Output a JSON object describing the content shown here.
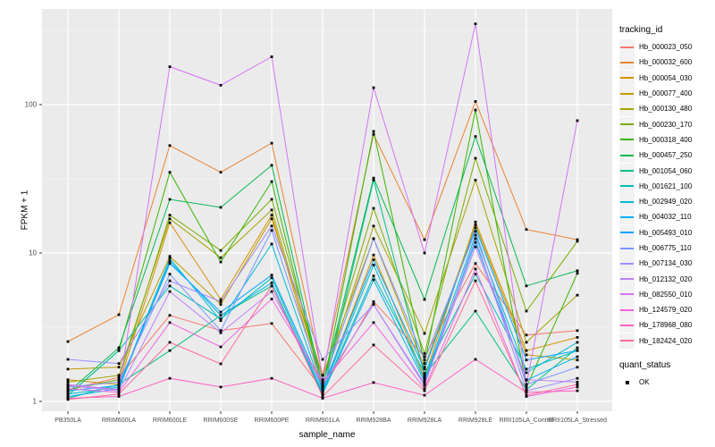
{
  "chart_data": {
    "type": "line",
    "title": "",
    "xlabel": "sample_name",
    "ylabel": "FPKM + 1",
    "y_scale": "log10",
    "y_ticks": [
      1,
      10,
      100
    ],
    "y_minor_ticks": [
      3.162,
      31.62,
      316.2
    ],
    "ylim": [
      0.86,
      440
    ],
    "grid": "on",
    "legend_position": "right",
    "categories": [
      "PB350LA",
      "RRIM600LA",
      "RRIM600LE",
      "RRIM600SE",
      "RRIM600PE",
      "RRIM901LA",
      "RRIM928BA",
      "RRIM928LA",
      "RRIM928LE",
      "RRII105LA_Control",
      "RRII105LA_Stressed"
    ],
    "series": [
      {
        "name": "Hb_000023_050",
        "color": "#F8766D",
        "values": [
          1.2,
          1.45,
          3.8,
          3.0,
          3.35,
          1.2,
          4.7,
          2.0,
          8.5,
          2.8,
          3.0
        ]
      },
      {
        "name": "Hb_000032_600",
        "color": "#EA8331",
        "values": [
          2.53,
          3.84,
          53,
          35,
          55,
          1.5,
          63,
          12.3,
          105,
          14.4,
          12.3
        ]
      },
      {
        "name": "Hb_000054_030",
        "color": "#D89000",
        "values": [
          1.4,
          1.3,
          16,
          4.86,
          18,
          1.2,
          9.7,
          1.45,
          16.2,
          2.2,
          2.7
        ]
      },
      {
        "name": "Hb_000077_400",
        "color": "#C09B00",
        "values": [
          1.65,
          1.7,
          9.5,
          4.5,
          17,
          1.5,
          12.5,
          1.7,
          15.5,
          2.06,
          1.9
        ]
      },
      {
        "name": "Hb_000130_480",
        "color": "#A3A500",
        "values": [
          1.35,
          1.5,
          17,
          9.3,
          19.5,
          1.3,
          15.2,
          2.87,
          31,
          2.5,
          5.2
        ]
      },
      {
        "name": "Hb_000230_170",
        "color": "#7CAE00",
        "values": [
          1.2,
          1.4,
          18,
          10.4,
          23,
          1.4,
          20,
          2.1,
          43.5,
          4.06,
          12.0
        ]
      },
      {
        "name": "Hb_000318_400",
        "color": "#39B600",
        "values": [
          1.1,
          2.2,
          35,
          8.7,
          30.3,
          1.2,
          66,
          1.8,
          92,
          1.25,
          7.3
        ]
      },
      {
        "name": "Hb_000457_250",
        "color": "#00BB4E",
        "values": [
          1.15,
          2.3,
          23,
          20.3,
          39,
          1.25,
          32,
          4.86,
          61,
          6.0,
          7.6
        ]
      },
      {
        "name": "Hb_001054_060",
        "color": "#00C087",
        "values": [
          1.05,
          1.3,
          2.2,
          3.8,
          6.0,
          1.1,
          31,
          1.5,
          4.06,
          1.2,
          2.3
        ]
      },
      {
        "name": "Hb_001621_100",
        "color": "#00C0B4",
        "values": [
          1.1,
          2.2,
          6.0,
          3.6,
          6.8,
          1.15,
          7.0,
          1.55,
          7.2,
          1.65,
          2.2
        ]
      },
      {
        "name": "Hb_002949_020",
        "color": "#00BCD8",
        "values": [
          1.12,
          1.25,
          9.2,
          3.5,
          11.5,
          1.18,
          8.3,
          1.4,
          13.2,
          1.56,
          2.5
        ]
      },
      {
        "name": "Hb_004032_110",
        "color": "#00B0F6",
        "values": [
          1.08,
          1.22,
          8.8,
          3.8,
          6.3,
          1.12,
          6.6,
          1.36,
          11.8,
          1.39,
          2.0
        ]
      },
      {
        "name": "Hb_005493_010",
        "color": "#00A5FF",
        "values": [
          1.18,
          1.28,
          8.5,
          4.0,
          7.1,
          1.22,
          9.0,
          1.65,
          14.8,
          1.9,
          2.2
        ]
      },
      {
        "name": "Hb_006775_110",
        "color": "#7997FF",
        "values": [
          1.25,
          1.35,
          7.2,
          3.0,
          14.2,
          1.3,
          12.5,
          1.9,
          14.0,
          1.3,
          1.7
        ]
      },
      {
        "name": "Hb_007134_030",
        "color": "#9F8CFF",
        "values": [
          1.92,
          1.8,
          6.5,
          4.7,
          15.2,
          1.92,
          4.5,
          1.28,
          12.5,
          1.18,
          1.43
        ]
      },
      {
        "name": "Hb_012132_020",
        "color": "#BC81F8",
        "values": [
          1.28,
          1.18,
          5.5,
          2.9,
          5.5,
          1.28,
          4.5,
          1.32,
          11.0,
          1.4,
          1.35
        ]
      },
      {
        "name": "Hb_082550_010",
        "color": "#D473F7",
        "values": [
          1.3,
          1.2,
          180,
          135,
          210,
          1.4,
          130,
          10,
          350,
          1.3,
          78
        ]
      },
      {
        "name": "Hb_124579_020",
        "color": "#F263E6",
        "values": [
          1.22,
          1.15,
          3.4,
          2.33,
          4.9,
          1.35,
          3.4,
          1.22,
          7.8,
          1.08,
          1.25
        ]
      },
      {
        "name": "Hb_178968_080",
        "color": "#FD61C4",
        "values": [
          1.05,
          1.08,
          1.43,
          1.25,
          1.43,
          1.05,
          1.34,
          1.1,
          1.92,
          1.15,
          1.18
        ]
      },
      {
        "name": "Hb_182424_020",
        "color": "#FF6A9D",
        "values": [
          1.03,
          1.12,
          2.5,
          1.79,
          6.0,
          1.08,
          2.4,
          1.18,
          6.5,
          1.1,
          1.3
        ]
      }
    ]
  },
  "legend": {
    "tracking_title": "tracking_id",
    "quant_title": "quant_status",
    "quant_items": [
      {
        "label": "OK",
        "marker": "black-square"
      }
    ]
  },
  "style_colors": {
    "panel_bg": "#EBEBEB",
    "grid_major": "#FFFFFF",
    "grid_minor": "#F5F5F5",
    "tick_label": "#4D4D4D",
    "tick_mark": "#333333",
    "point": "#000000",
    "legend_key_bg": "#F2F2F2"
  }
}
